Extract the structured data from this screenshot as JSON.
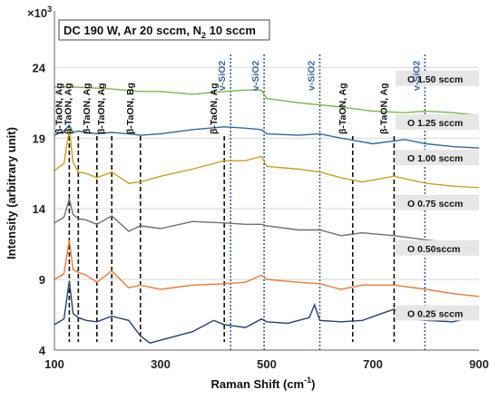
{
  "chart_data": {
    "type": "line",
    "condition": {
      "text": "DC 190 W, Ar 20 sccm, N",
      "sub": "2",
      "tail": " 10 sccm"
    },
    "y_multiplier": {
      "text": "×10",
      "sup": "3"
    },
    "xlabel": {
      "text": "Raman Shift (cm",
      "sup": "-1",
      "tail": ")"
    },
    "ylabel": "Intensity (arbitrary unit)",
    "xlim": [
      100,
      900
    ],
    "ylim": [
      4,
      28
    ],
    "xticks": [
      "100",
      "300",
      "500",
      "700",
      "900"
    ],
    "xtick_values": [
      100,
      300,
      500,
      700,
      900
    ],
    "yticks": [
      "4",
      "9",
      "14",
      "19",
      "24"
    ],
    "ytick_values": [
      4,
      9,
      14,
      19,
      24
    ],
    "grid": "horizontal",
    "phase_lines": [
      {
        "x": 128,
        "label": "β-TaON, Ag"
      },
      {
        "x": 145,
        "label": "β-TaON, Ag"
      },
      {
        "x": 180,
        "label": "β-TaON, Ag"
      },
      {
        "x": 208,
        "label": "β-TaON, Ag"
      },
      {
        "x": 262,
        "label": "β-TaON, Bg"
      },
      {
        "x": 420,
        "label": "β-TaON, Ag"
      },
      {
        "x": 662,
        "label": "β-TaON, Ag"
      },
      {
        "x": 740,
        "label": "β-TaON, Ag"
      }
    ],
    "sio2_lines": [
      {
        "x": 432,
        "label": "v-SiO2"
      },
      {
        "x": 495,
        "label": "v-SiO2"
      },
      {
        "x": 600,
        "label": "v-SiO2"
      },
      {
        "x": 798,
        "label": "v-SiO2"
      }
    ],
    "series": [
      {
        "name": "O 1.50 sccm",
        "color": "#7ab648",
        "base": 23.2,
        "points": [
          [
            100,
            22.6
          ],
          [
            140,
            22.6
          ],
          [
            200,
            22.5
          ],
          [
            260,
            22.3
          ],
          [
            300,
            22.3
          ],
          [
            360,
            22.1
          ],
          [
            420,
            22.3
          ],
          [
            460,
            22.4
          ],
          [
            490,
            22.4
          ],
          [
            500,
            21.8
          ],
          [
            560,
            21.5
          ],
          [
            640,
            21.2
          ],
          [
            700,
            20.9
          ],
          [
            760,
            20.8
          ],
          [
            800,
            20.9
          ],
          [
            850,
            20.8
          ],
          [
            900,
            20.6
          ]
        ]
      },
      {
        "name": "O 1.25 sccm",
        "color": "#2f6aa3",
        "base": 20.1,
        "points": [
          [
            100,
            19.2
          ],
          [
            118,
            19.5
          ],
          [
            128,
            19.9
          ],
          [
            135,
            19.4
          ],
          [
            145,
            19.5
          ],
          [
            160,
            19.4
          ],
          [
            180,
            19.3
          ],
          [
            208,
            19.4
          ],
          [
            240,
            19.3
          ],
          [
            262,
            19.2
          ],
          [
            300,
            19.3
          ],
          [
            360,
            19.6
          ],
          [
            420,
            19.8
          ],
          [
            460,
            19.7
          ],
          [
            490,
            19.6
          ],
          [
            500,
            19.3
          ],
          [
            560,
            19.2
          ],
          [
            600,
            19.3
          ],
          [
            640,
            19.0
          ],
          [
            700,
            18.6
          ],
          [
            760,
            18.9
          ],
          [
            800,
            18.6
          ],
          [
            850,
            18.4
          ],
          [
            900,
            18.3
          ]
        ]
      },
      {
        "name": "O 1.00 sccm",
        "color": "#c9a21d",
        "base": 17.6,
        "points": [
          [
            100,
            16.7
          ],
          [
            118,
            17.2
          ],
          [
            128,
            19.6
          ],
          [
            135,
            17.3
          ],
          [
            145,
            16.6
          ],
          [
            160,
            16.5
          ],
          [
            180,
            16.2
          ],
          [
            208,
            16.6
          ],
          [
            240,
            15.8
          ],
          [
            262,
            15.9
          ],
          [
            300,
            16.3
          ],
          [
            360,
            16.8
          ],
          [
            420,
            17.4
          ],
          [
            460,
            17.4
          ],
          [
            490,
            17.7
          ],
          [
            500,
            17.0
          ],
          [
            560,
            16.8
          ],
          [
            600,
            16.6
          ],
          [
            640,
            16.2
          ],
          [
            680,
            15.9
          ],
          [
            740,
            16.3
          ],
          [
            800,
            15.8
          ],
          [
            850,
            15.6
          ],
          [
            900,
            15.5
          ]
        ]
      },
      {
        "name": "O 0.75 sccm",
        "color": "#6f6f6f",
        "base": 14.4,
        "points": [
          [
            100,
            13.0
          ],
          [
            118,
            13.4
          ],
          [
            128,
            14.7
          ],
          [
            135,
            13.6
          ],
          [
            145,
            13.3
          ],
          [
            160,
            13.2
          ],
          [
            180,
            12.9
          ],
          [
            208,
            13.5
          ],
          [
            240,
            12.4
          ],
          [
            262,
            12.8
          ],
          [
            300,
            12.6
          ],
          [
            360,
            13.1
          ],
          [
            420,
            13.0
          ],
          [
            460,
            12.9
          ],
          [
            490,
            12.9
          ],
          [
            500,
            12.8
          ],
          [
            560,
            12.5
          ],
          [
            600,
            12.5
          ],
          [
            640,
            12.1
          ],
          [
            680,
            12.3
          ],
          [
            740,
            12.1
          ],
          [
            800,
            11.8
          ],
          [
            850,
            11.6
          ],
          [
            900,
            11.5
          ]
        ]
      },
      {
        "name": "O 0.50sccm",
        "color": "#ea7b35",
        "base": 11.2,
        "points": [
          [
            100,
            9.0
          ],
          [
            118,
            9.4
          ],
          [
            128,
            11.8
          ],
          [
            135,
            9.7
          ],
          [
            145,
            9.5
          ],
          [
            160,
            9.3
          ],
          [
            180,
            8.8
          ],
          [
            208,
            9.6
          ],
          [
            240,
            8.4
          ],
          [
            262,
            8.6
          ],
          [
            300,
            8.3
          ],
          [
            360,
            8.6
          ],
          [
            420,
            8.7
          ],
          [
            460,
            8.8
          ],
          [
            490,
            9.3
          ],
          [
            500,
            9.0
          ],
          [
            560,
            8.8
          ],
          [
            600,
            8.7
          ],
          [
            640,
            8.3
          ],
          [
            680,
            8.6
          ],
          [
            740,
            8.6
          ],
          [
            800,
            8.3
          ],
          [
            850,
            8.0
          ],
          [
            900,
            7.8
          ]
        ]
      },
      {
        "name": "O 0.25 sccm",
        "color": "#25406f",
        "base": 6.6,
        "points": [
          [
            100,
            5.8
          ],
          [
            118,
            6.2
          ],
          [
            128,
            8.9
          ],
          [
            135,
            6.6
          ],
          [
            145,
            6.3
          ],
          [
            160,
            6.1
          ],
          [
            180,
            6.0
          ],
          [
            208,
            6.4
          ],
          [
            240,
            6.1
          ],
          [
            262,
            5.0
          ],
          [
            280,
            4.5
          ],
          [
            300,
            4.7
          ],
          [
            360,
            5.3
          ],
          [
            400,
            6.1
          ],
          [
            420,
            5.8
          ],
          [
            460,
            5.6
          ],
          [
            490,
            6.2
          ],
          [
            500,
            6.0
          ],
          [
            540,
            5.9
          ],
          [
            580,
            6.3
          ],
          [
            590,
            7.2
          ],
          [
            600,
            6.1
          ],
          [
            640,
            6.0
          ],
          [
            680,
            6.1
          ],
          [
            740,
            6.9
          ],
          [
            760,
            6.2
          ],
          [
            800,
            6.1
          ],
          [
            850,
            6.0
          ],
          [
            900,
            6.4
          ]
        ]
      }
    ]
  }
}
